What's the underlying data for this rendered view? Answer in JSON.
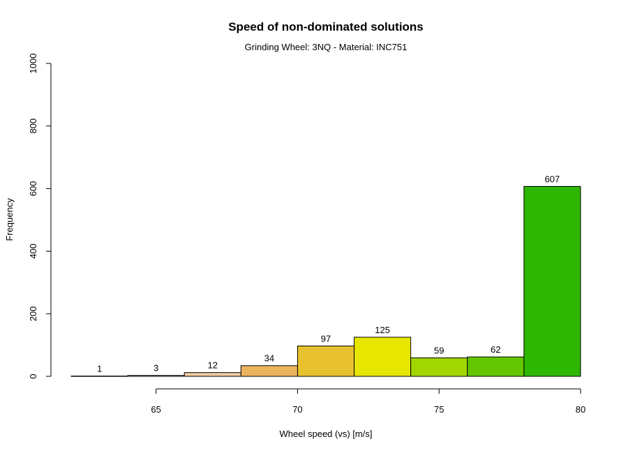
{
  "chart_data": {
    "type": "bar",
    "title": "Speed of non-dominated solutions",
    "subtitle": "Grinding Wheel: 3NQ - Material: INC751",
    "xlabel": "Wheel speed (vs) [m/s]",
    "ylabel": "Frequency",
    "xlim": [
      62,
      80
    ],
    "ylim": [
      0,
      1000
    ],
    "x_ticks": [
      65,
      70,
      75,
      80
    ],
    "y_ticks": [
      0,
      200,
      400,
      600,
      800,
      1000
    ],
    "x_tick_labels": [
      "65",
      "70",
      "75",
      "80"
    ],
    "y_tick_labels": [
      "0",
      "200",
      "400",
      "600",
      "800",
      "1000"
    ],
    "bins": [
      {
        "start": 62,
        "end": 64,
        "value": 1,
        "label": "1",
        "color": "#7a3b1e"
      },
      {
        "start": 64,
        "end": 66,
        "value": 3,
        "label": "3",
        "color": "#f6dfc9"
      },
      {
        "start": 66,
        "end": 68,
        "value": 12,
        "label": "12",
        "color": "#f2c8a0"
      },
      {
        "start": 68,
        "end": 70,
        "value": 34,
        "label": "34",
        "color": "#ecb35e"
      },
      {
        "start": 70,
        "end": 72,
        "value": 97,
        "label": "97",
        "color": "#e8c22e"
      },
      {
        "start": 72,
        "end": 74,
        "value": 125,
        "label": "125",
        "color": "#e6e600"
      },
      {
        "start": 74,
        "end": 76,
        "value": 59,
        "label": "59",
        "color": "#a2d600"
      },
      {
        "start": 76,
        "end": 78,
        "value": 62,
        "label": "62",
        "color": "#63c600"
      },
      {
        "start": 78,
        "end": 80,
        "value": 607,
        "label": "607",
        "color": "#2db700"
      }
    ],
    "grid": false,
    "legend": "none"
  }
}
